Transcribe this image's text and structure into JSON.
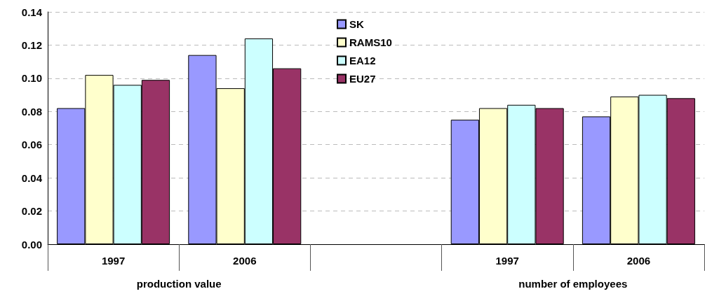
{
  "chart_data": {
    "type": "bar",
    "categories": [
      "1997",
      "2006",
      null,
      "1997",
      "2006"
    ],
    "series": [
      {
        "name": "SK",
        "color": "#9999ff",
        "values": [
          0.082,
          0.114,
          null,
          0.075,
          0.077
        ]
      },
      {
        "name": "RAMS10",
        "color": "#ffffcc",
        "values": [
          0.102,
          0.094,
          null,
          0.082,
          0.089
        ]
      },
      {
        "name": "EA12",
        "color": "#ccffff",
        "values": [
          0.096,
          0.124,
          null,
          0.084,
          0.09
        ]
      },
      {
        "name": "EU27",
        "color": "#993366",
        "values": [
          0.099,
          0.106,
          null,
          0.082,
          0.088
        ]
      }
    ],
    "annotations": [
      "production value",
      "number of employees"
    ],
    "ylim": [
      0,
      0.14
    ],
    "yticks": [
      {
        "value": 0,
        "label": "0.00"
      },
      {
        "value": 0.02,
        "label": "0.02"
      },
      {
        "value": 0.04,
        "label": "0.04"
      },
      {
        "value": 0.06,
        "label": "0.06"
      },
      {
        "value": 0.08,
        "label": "0.08"
      },
      {
        "value": 0.1,
        "label": "0.10"
      },
      {
        "value": 0.12,
        "label": "0.12"
      },
      {
        "value": 0.14,
        "label": "0.14"
      }
    ],
    "grid": "y",
    "legend": "top"
  }
}
